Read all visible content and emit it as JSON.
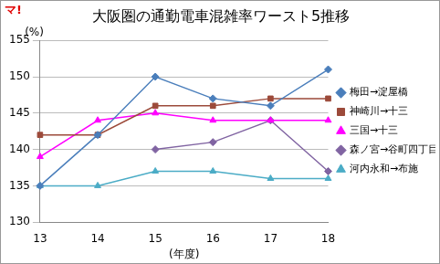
{
  "chart_data": {
    "type": "line",
    "title": "大阪圏の通勤電車混雑率ワースト5推移",
    "annotation": "マ!",
    "y_label": "(%)",
    "x_label": "(年度)",
    "categories": [
      "13",
      "14",
      "15",
      "16",
      "17",
      "18"
    ],
    "series": [
      {
        "name": "梅田→淀屋橋",
        "color": "#4A7EBB",
        "marker": "diamond",
        "values": [
          135,
          142,
          150,
          147,
          146,
          151
        ]
      },
      {
        "name": "神崎川→十三",
        "color": "#9C4A3A",
        "marker": "square",
        "values": [
          142,
          142,
          146,
          146,
          147,
          147
        ]
      },
      {
        "name": "三国→十三",
        "color": "#FF00FF",
        "marker": "triangle",
        "values": [
          139,
          144,
          145,
          144,
          144,
          144
        ]
      },
      {
        "name": "森ノ宮→谷町四丁目",
        "color": "#8064A2",
        "marker": "diamond",
        "values": [
          null,
          null,
          140,
          141,
          144,
          137
        ]
      },
      {
        "name": "河内永和→布施",
        "color": "#4BACC6",
        "marker": "triangle",
        "values": [
          135,
          135,
          137,
          137,
          136,
          136
        ]
      }
    ],
    "ylim": [
      130,
      155
    ],
    "yticks": [
      130,
      135,
      140,
      145,
      150,
      155
    ],
    "grid": true,
    "legend": "right"
  }
}
